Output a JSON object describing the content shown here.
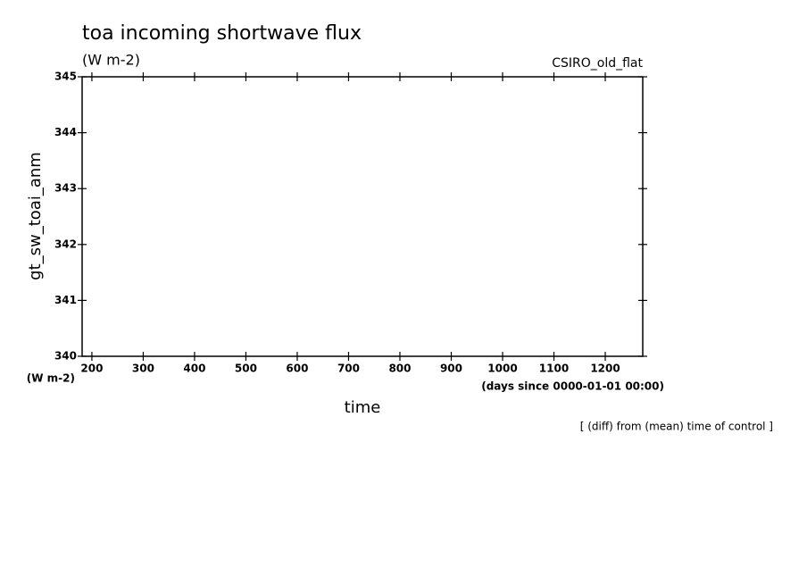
{
  "chart_data": {
    "type": "line",
    "title": "toa incoming shortwave flux",
    "subtitle": "(W m-2)",
    "source_label": "CSIRO_old_flat",
    "ylabel": "gt_sw_toai_anm",
    "yunits": "(W m-2)",
    "xlabel": "time",
    "xunits": "(days since 0000-01-01 00:00)",
    "note": "[ (diff) from (mean) time of control ]",
    "xlim": [
      181,
      1273
    ],
    "xticks": [
      200,
      300,
      400,
      500,
      600,
      700,
      800,
      900,
      1000,
      1100,
      1200
    ],
    "ylim": [
      340,
      345
    ],
    "yticks": [
      340,
      341,
      342,
      343,
      344,
      345
    ],
    "series": [],
    "grid": false
  }
}
